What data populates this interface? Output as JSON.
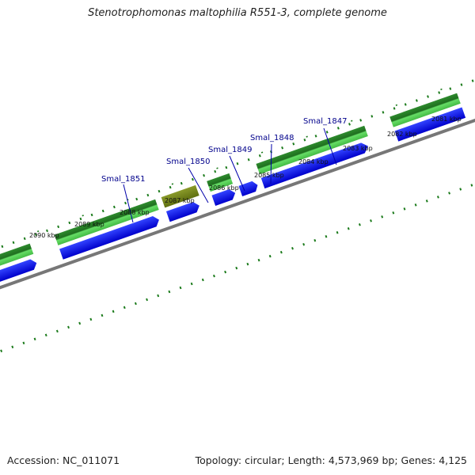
{
  "title": "Stenotrophomonas maltophilia R551-3, complete genome",
  "footer": {
    "accession": "Accession: NC_011071",
    "summary": "Topology: circular; Length: 4,573,969 bp; Genes: 4,125"
  },
  "kbp_labels": [
    "2081 kbp",
    "2082 kbp",
    "2083 kbp",
    "2084 kbp",
    "2085 kbp",
    "2086 kbp",
    "2087 kbp",
    "2088 kbp",
    "2089 kbp",
    "2090 kbp"
  ],
  "gene_labels": [
    "Smal_1847",
    "Smal_1848",
    "Smal_1849",
    "Smal_1850",
    "Smal_1851"
  ],
  "colors": {
    "tick": "#1a7a1a",
    "cds_blue": "#0000ee",
    "gene_green_dark": "#1f7a1f",
    "gene_green_light": "#55cc55",
    "gene_olive": "#7a8a1a",
    "backbone": "#777777",
    "label_blue": "#00008b"
  }
}
